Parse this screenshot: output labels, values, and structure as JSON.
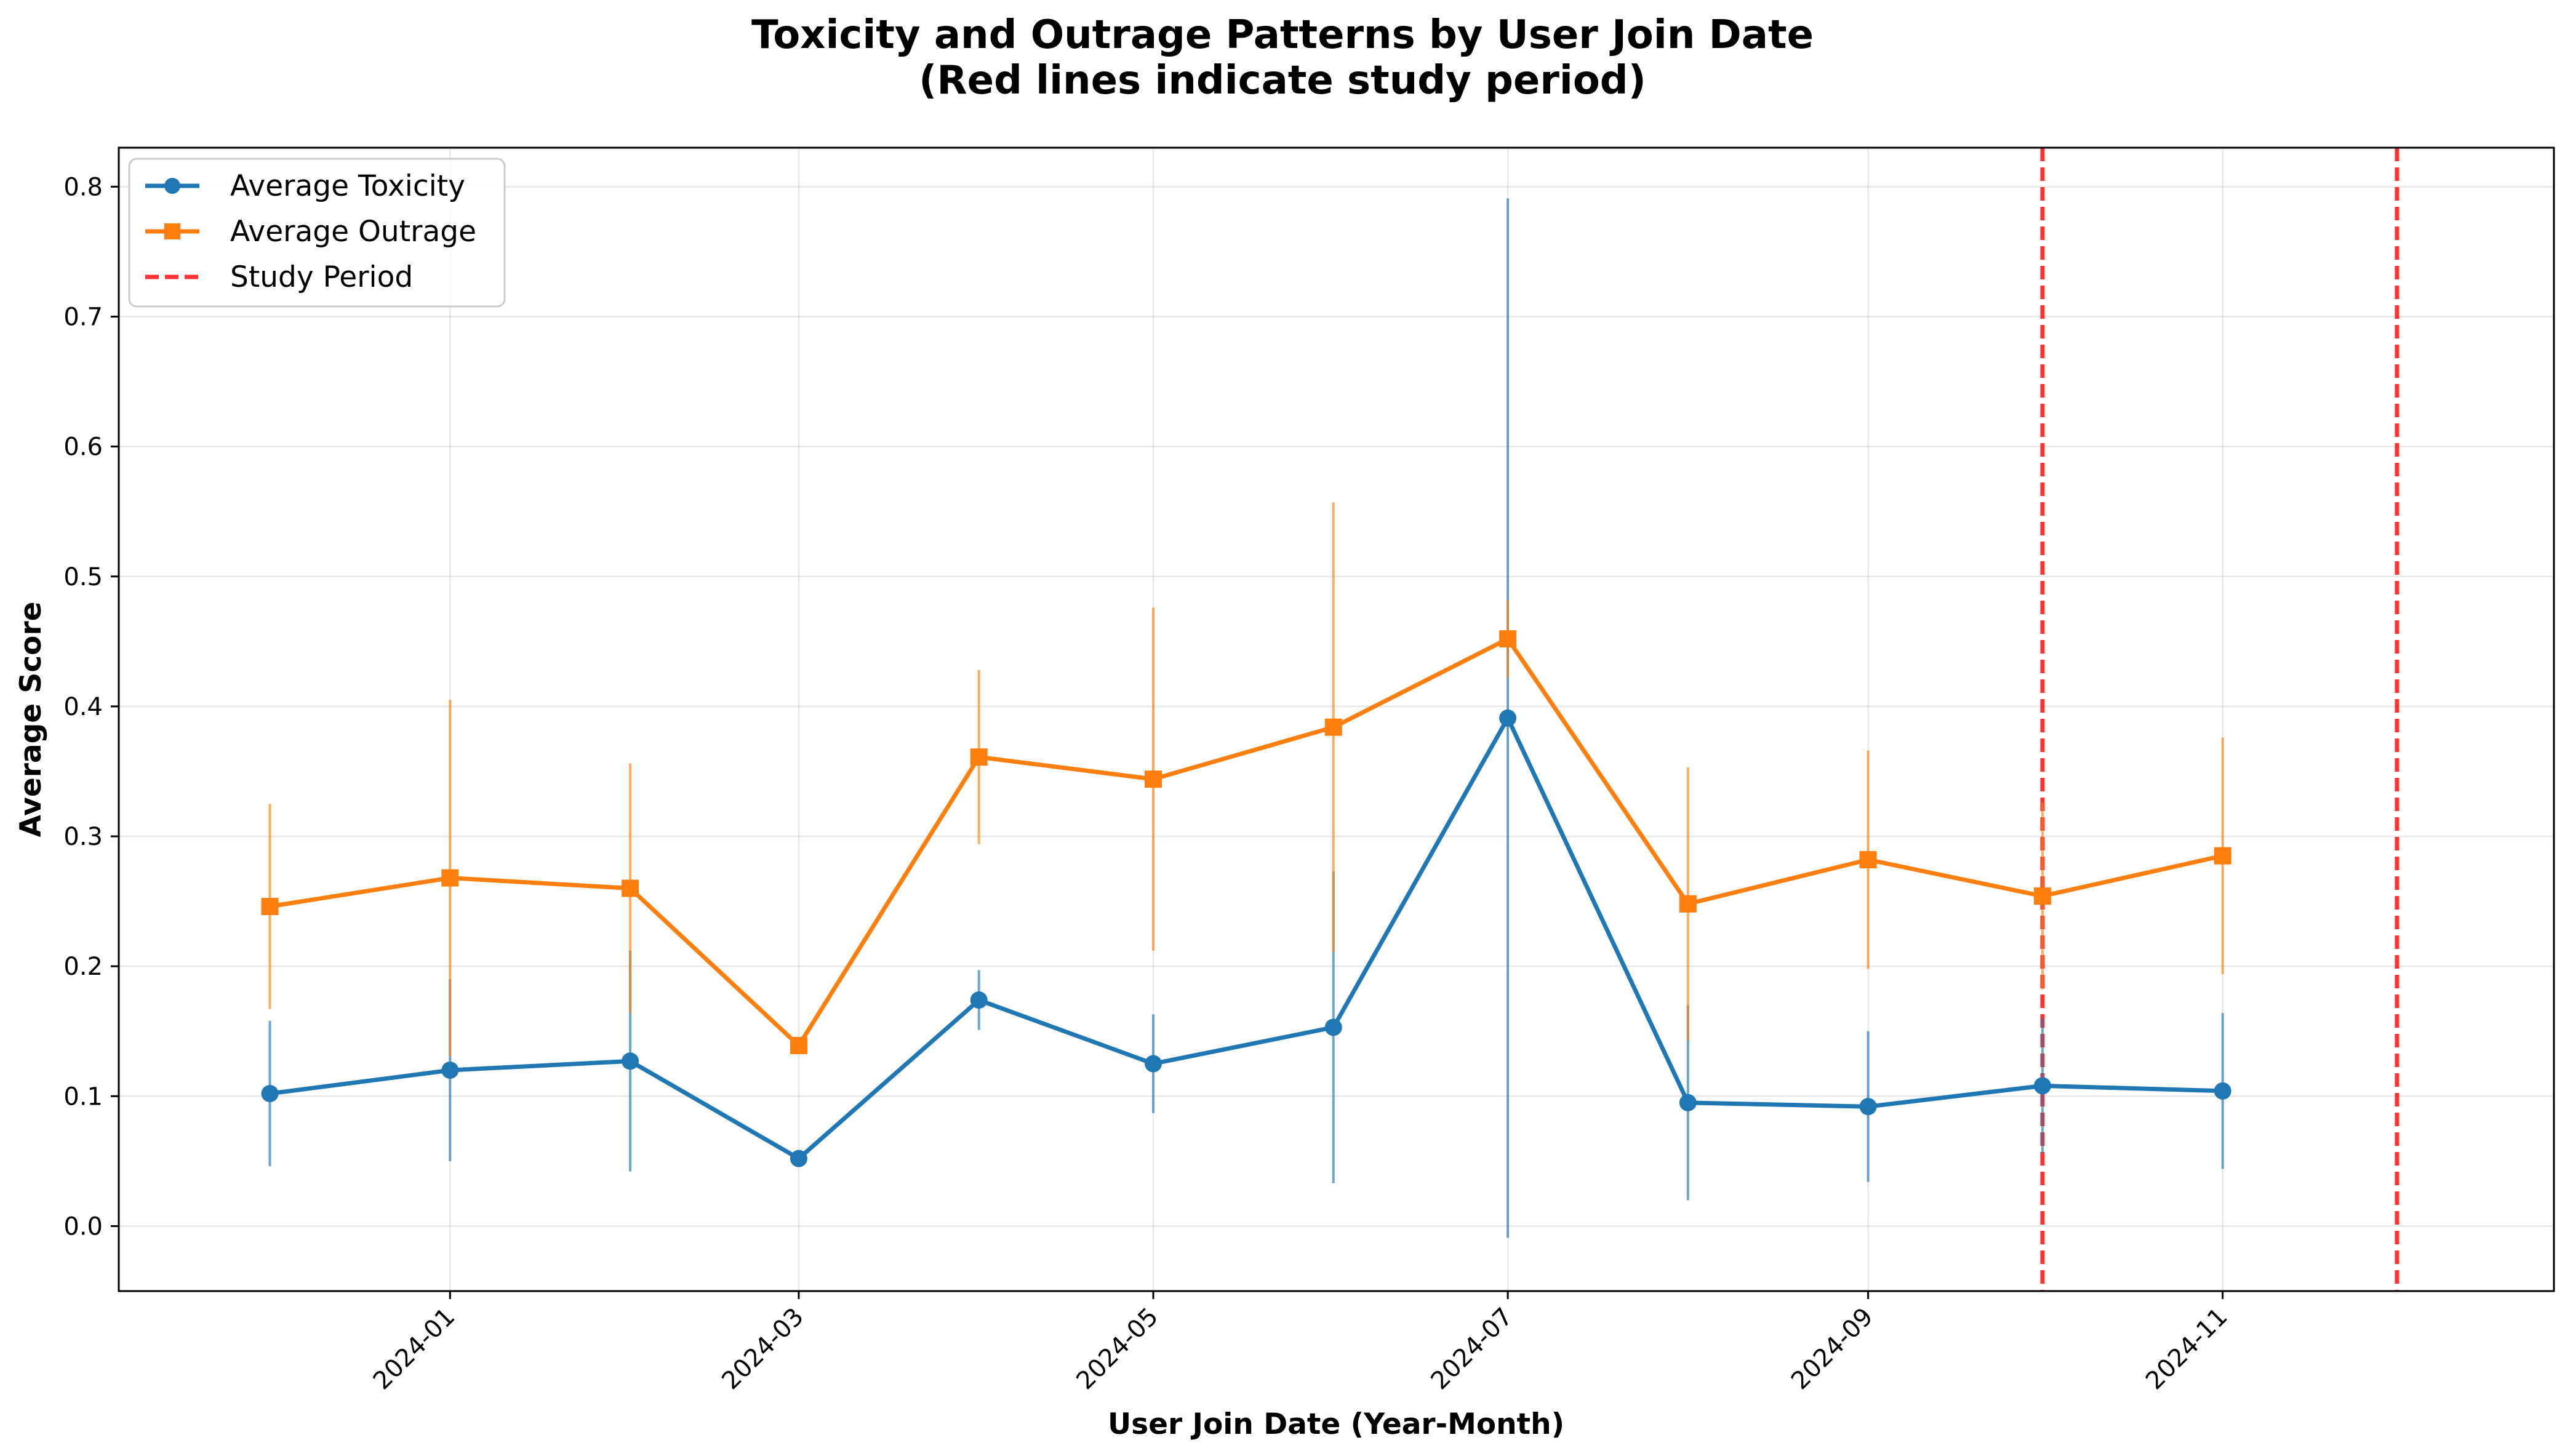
{
  "chart_data": {
    "type": "line",
    "title_line1": "Toxicity and Outrage Patterns by User Join Date",
    "title_line2": "(Red lines indicate study period)",
    "xlabel": "User Join Date (Year-Month)",
    "ylabel": "Average Score",
    "x_axis": {
      "kind": "date",
      "range": [
        "2023-11-05",
        "2024-12-28"
      ],
      "ticks": [
        "2024-01",
        "2024-03",
        "2024-05",
        "2024-07",
        "2024-09",
        "2024-11"
      ],
      "tick_rotation_deg": 45
    },
    "y_axis": {
      "range": [
        -0.05,
        0.83
      ],
      "ticks": [
        "0.0",
        "0.1",
        "0.2",
        "0.3",
        "0.4",
        "0.5",
        "0.6",
        "0.7",
        "0.8"
      ]
    },
    "grid": true,
    "legend_position": "top-left",
    "x": [
      "2023-12",
      "2024-01",
      "2024-02",
      "2024-03",
      "2024-04",
      "2024-05",
      "2024-06",
      "2024-07",
      "2024-08",
      "2024-09",
      "2024-10",
      "2024-11"
    ],
    "series": [
      {
        "name": "Average Toxicity",
        "color": "#1f77b4",
        "marker": "circle",
        "values": [
          0.102,
          0.12,
          0.127,
          0.052,
          0.174,
          0.125,
          0.153,
          0.391,
          0.095,
          0.092,
          0.108,
          0.104
        ],
        "error": [
          0.056,
          0.07,
          0.085,
          0.0,
          0.023,
          0.038,
          0.12,
          0.4,
          0.075,
          0.058,
          0.052,
          0.06
        ]
      },
      {
        "name": "Average Outrage",
        "color": "#ff7f0e",
        "marker": "square",
        "values": [
          0.246,
          0.268,
          0.26,
          0.139,
          0.361,
          0.344,
          0.384,
          0.452,
          0.248,
          0.282,
          0.254,
          0.285
        ],
        "error": [
          0.079,
          0.137,
          0.096,
          0.0,
          0.067,
          0.132,
          0.173,
          0.03,
          0.105,
          0.084,
          0.072,
          0.091
        ]
      }
    ],
    "reference_lines": {
      "name": "Study Period",
      "color": "#ff0000",
      "style": "dashed",
      "x": [
        "2024-10",
        "2024-12"
      ]
    }
  }
}
